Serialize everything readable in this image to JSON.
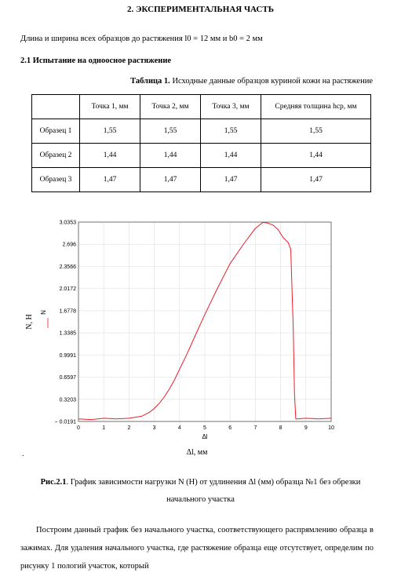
{
  "heading": "2. ЭКСПЕРИМЕНТАЛЬНАЯ ЧАСТЬ",
  "intro": "Длина и ширина всех образцов до растяжения l0 = 12 мм и b0 = 2 мм",
  "section": "2.1 Испытание на одноосное растяжение",
  "table_caption": {
    "label": "Таблица 1.",
    "text": " Исходные данные образцов куриной кожи на растяжение"
  },
  "table": {
    "headers": [
      "",
      "Точка 1, мм",
      "Точка 2, мм",
      "Точка 3, мм",
      "Средняя толщина hср, мм"
    ],
    "rows": [
      [
        "Образец 1",
        "1,55",
        "1,55",
        "1,55",
        "1,55"
      ],
      [
        "Образец 2",
        "1,44",
        "1,44",
        "1,44",
        "1,44"
      ],
      [
        "Образец 3",
        "1,47",
        "1,47",
        "1,47",
        "1,47"
      ]
    ]
  },
  "chart_data": {
    "type": "line",
    "xlabel_inner": "Δl",
    "xlabel_outer": "Δl, мм",
    "ylabel_inner": "N",
    "ylabel_outer": "N, Н",
    "xlim": [
      0,
      10
    ],
    "ylim": [
      -0.0191,
      3.0353
    ],
    "x_ticks": [
      "0",
      "1",
      "2",
      "3",
      "4",
      "5",
      "6",
      "7",
      "8",
      "9",
      "10"
    ],
    "y_ticks": [
      "3.0353",
      "2.696",
      "2.3566",
      "2.0172",
      "1.6778",
      "1.3385",
      "0.9991",
      "0.6597",
      "0.3203",
      "-0.0191"
    ],
    "grid": true,
    "series": [
      {
        "color": "#e8202a",
        "x": [
          0,
          0.5,
          1,
          1.5,
          2,
          2.5,
          2.8,
          3.0,
          3.2,
          3.4,
          3.6,
          3.8,
          4.0,
          4.3,
          4.6,
          5.0,
          5.5,
          6.0,
          6.5,
          7.0,
          7.3,
          7.5,
          7.7,
          7.9,
          8.1,
          8.3,
          8.4,
          8.5,
          8.55,
          8.6,
          8.7,
          9.0,
          9.5,
          10.0
        ],
        "y": [
          0.02,
          0.01,
          0.03,
          0.02,
          0.03,
          0.06,
          0.12,
          0.18,
          0.26,
          0.36,
          0.48,
          0.62,
          0.78,
          1.02,
          1.28,
          1.62,
          2.02,
          2.4,
          2.68,
          2.94,
          3.03,
          3.02,
          2.99,
          2.92,
          2.8,
          2.72,
          2.62,
          1.4,
          0.4,
          0.02,
          0.02,
          0.03,
          0.02,
          0.03
        ]
      }
    ]
  },
  "fig_caption": {
    "label": "Рис.2.1",
    "text": ". График зависимости нагрузки N (Н) от удлинения Δl (мм) образца №1 без обрезки",
    "line2": "начального участка"
  },
  "body": "Построим данный график без начального участка, соответствующего распрямлению образца в зажимах. Для удаления начального участка, где растяжение образца еще отсутствует, определим по рисунку 1 пологий участок, который",
  "dot": "."
}
